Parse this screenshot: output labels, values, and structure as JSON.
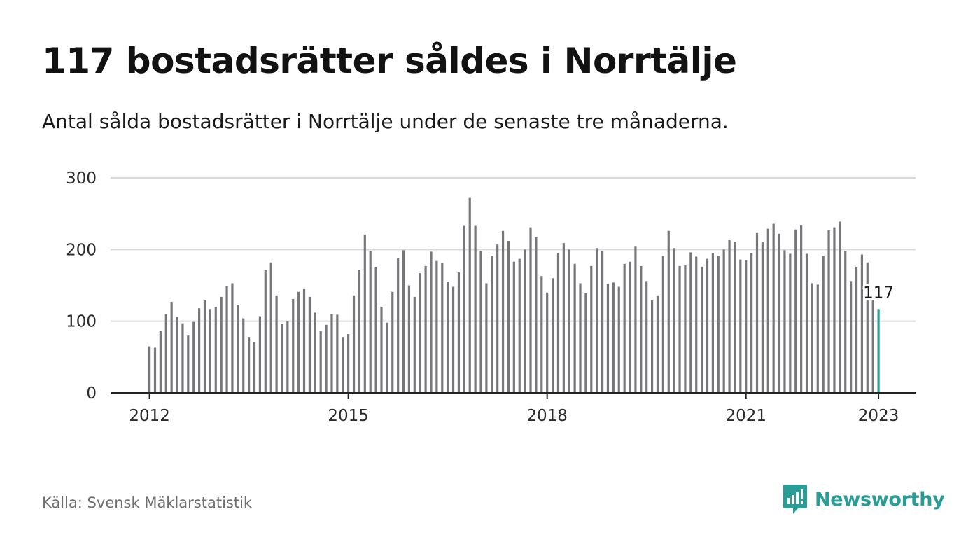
{
  "header": {
    "title": "117 bostadsrätter såldes i Norrtälje",
    "subtitle": "Antal sålda bostadsrätter i Norrtälje under de senaste tre månaderna."
  },
  "footer": {
    "source": "Källa: Svensk Mäklarstatistik",
    "brand": "Newsworthy",
    "brand_icon": "bar-chart-speech-bubble-icon"
  },
  "colors": {
    "bar": "#77777b",
    "highlight": "#2a9d96",
    "grid": "#d9d9d9",
    "axis": "#222222"
  },
  "chart_data": {
    "type": "bar",
    "title": "",
    "xlabel": "",
    "ylabel": "",
    "ylim": [
      0,
      300
    ],
    "yticks": [
      0,
      100,
      200,
      300
    ],
    "ytick_labels": [
      "0",
      "100",
      "200",
      "300"
    ],
    "xtick_labels": [
      "2012",
      "2015",
      "2018",
      "2021",
      "2023"
    ],
    "grid": true,
    "highlight_last": true,
    "annotation": {
      "text": "117",
      "target": "last bar"
    },
    "start": "2012-01",
    "interval": "monthly",
    "values": [
      65,
      63,
      86,
      110,
      127,
      106,
      97,
      80,
      99,
      118,
      129,
      117,
      120,
      134,
      149,
      153,
      123,
      104,
      78,
      71,
      107,
      172,
      182,
      136,
      96,
      100,
      131,
      141,
      145,
      134,
      112,
      86,
      95,
      110,
      109,
      78,
      82,
      136,
      172,
      221,
      198,
      175,
      120,
      98,
      141,
      188,
      199,
      150,
      134,
      167,
      177,
      197,
      184,
      181,
      155,
      148,
      168,
      233,
      272,
      233,
      198,
      153,
      191,
      207,
      226,
      212,
      183,
      187,
      200,
      231,
      217,
      163,
      140,
      160,
      195,
      209,
      200,
      180,
      153,
      139,
      177,
      202,
      198,
      152,
      154,
      148,
      180,
      183,
      204,
      177,
      156,
      129,
      136,
      191,
      226,
      202,
      177,
      178,
      196,
      190,
      176,
      187,
      195,
      191,
      200,
      213,
      211,
      186,
      185,
      195,
      223,
      210,
      229,
      236,
      222,
      199,
      194,
      228,
      234,
      194,
      153,
      151,
      191,
      227,
      231,
      239,
      198,
      156,
      176,
      193,
      182,
      130,
      117
    ]
  }
}
